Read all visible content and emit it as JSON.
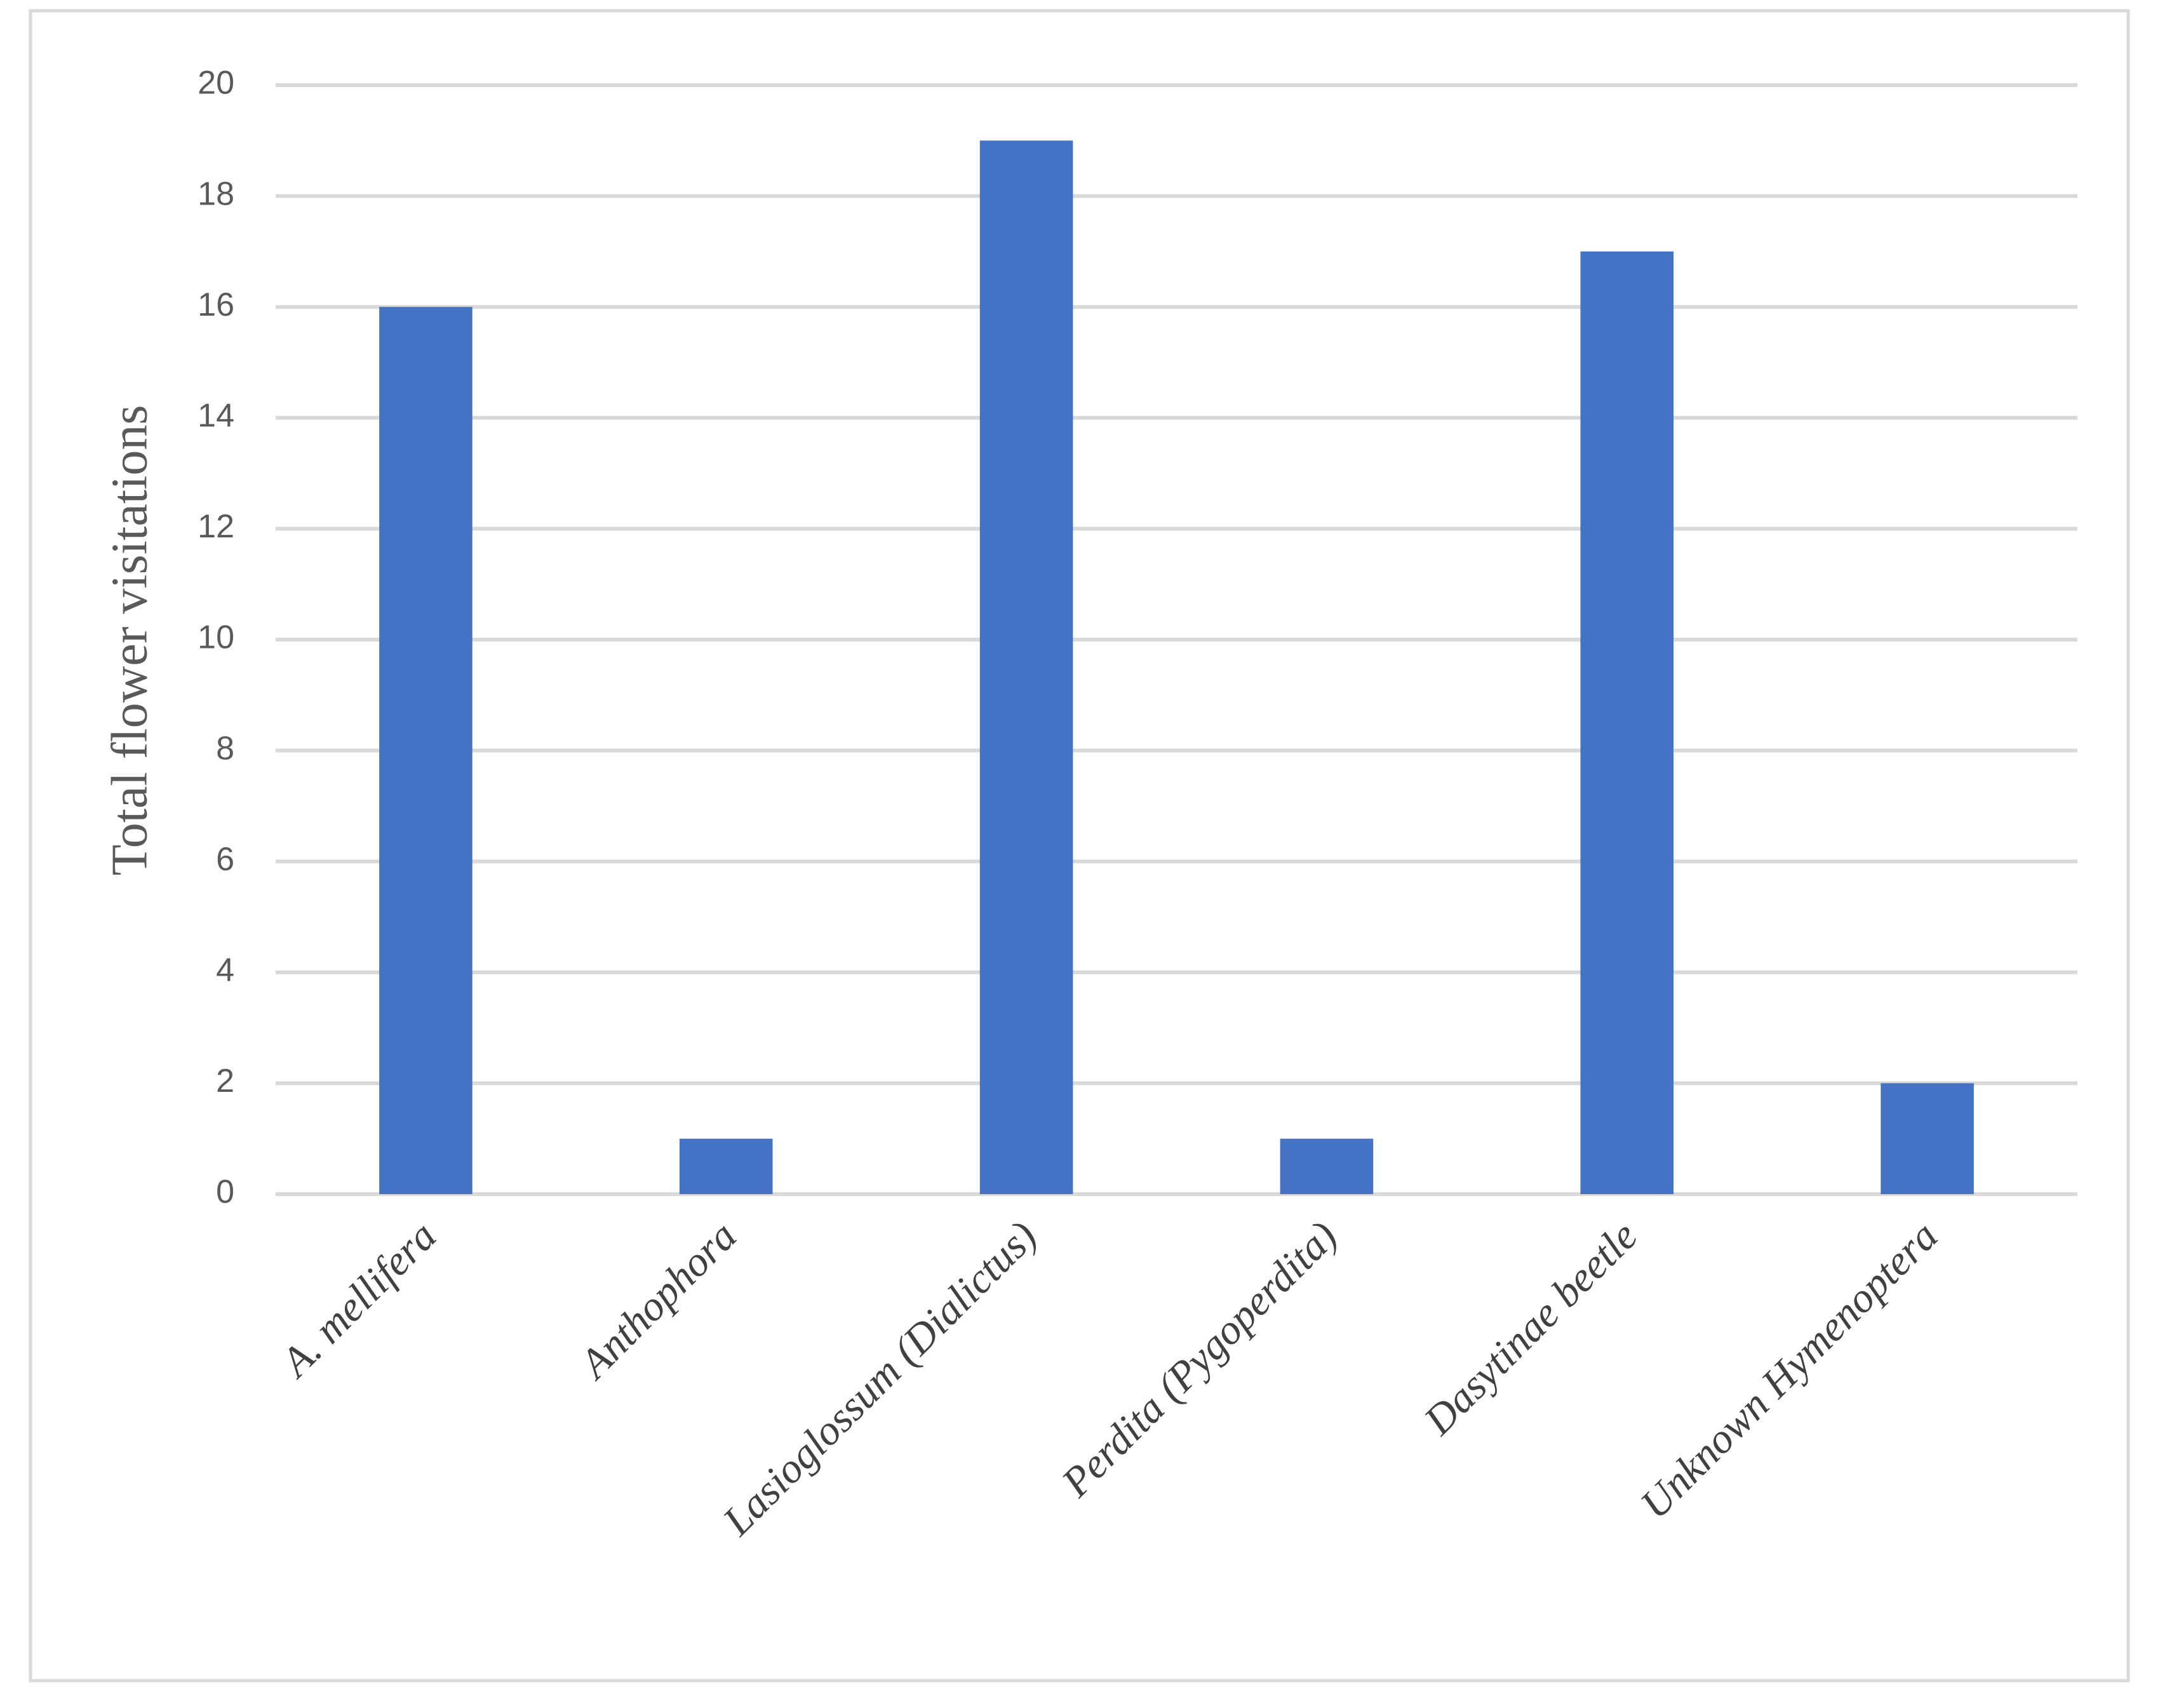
{
  "chart_data": {
    "type": "bar",
    "y_label": "Total flower visitations",
    "categories": [
      "A. mellifera",
      "Anthophora",
      "Lasioglossum (Dialictus)",
      "Perdita (Pygoperdita)",
      "Dasytinae beetle",
      "Unknown Hymenoptera"
    ],
    "values": [
      16,
      1,
      19,
      1,
      17,
      2
    ],
    "color": "#4472c4",
    "ylim": [
      0,
      20
    ],
    "yticks": [
      0,
      2,
      4,
      6,
      8,
      10,
      12,
      14,
      16,
      18,
      20
    ],
    "grid": true
  }
}
